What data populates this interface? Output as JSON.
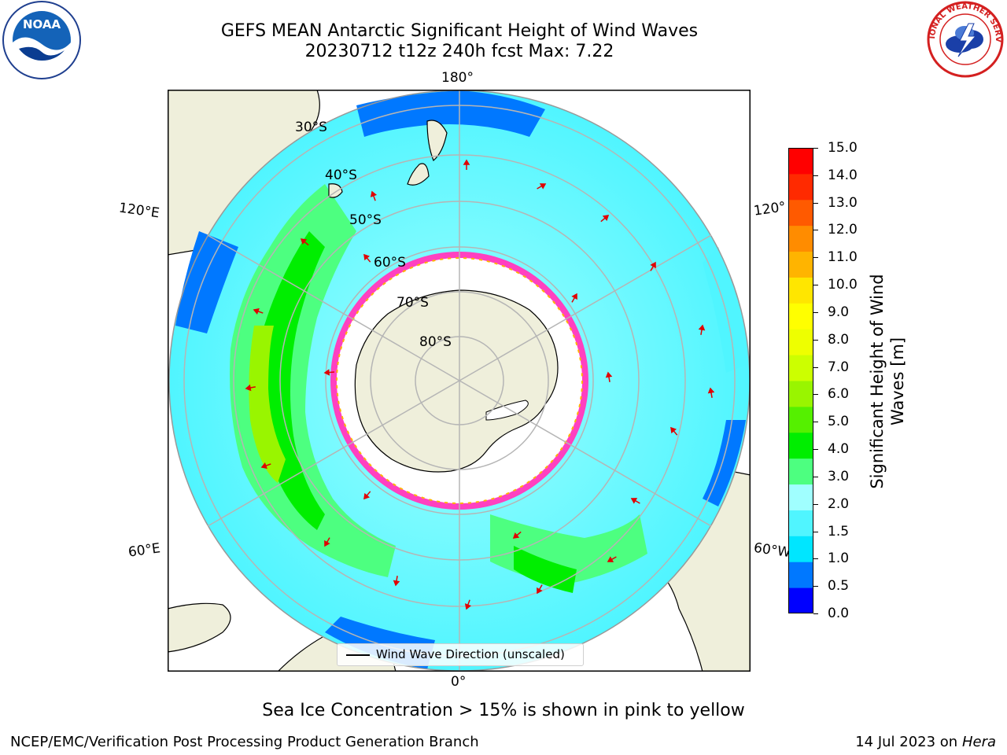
{
  "title_line1": "GEFS MEAN Antarctic Significant Height of Wind Waves",
  "title_line2": "20230712 t12z 240h fcst   Max: 7.22",
  "longitude_labels": {
    "top": "180°",
    "bottom": "0°",
    "upper_left": "120°E",
    "lower_left": "60°E",
    "upper_right": "120°",
    "lower_right": "60°W"
  },
  "latitude_labels": [
    "30°S",
    "40°S",
    "50°S",
    "60°S",
    "70°S",
    "80°S"
  ],
  "legend_label": "Wind Wave Direction (unscaled)",
  "colorbar": {
    "label": "Significant Height of Wind Waves [m]",
    "label_line1": "Significant Height of Wind",
    "label_line2": "Waves [m]",
    "ticks": [
      "15.0",
      "14.0",
      "13.0",
      "12.0",
      "11.0",
      "10.0",
      "9.0",
      "8.0",
      "7.0",
      "6.0",
      "5.0",
      "4.0",
      "3.0",
      "2.0",
      "1.5",
      "1.0",
      "0.5",
      "0.0"
    ],
    "colors": [
      "#0000ff",
      "#0078ff",
      "#00e6ff",
      "#50f5ff",
      "#a0ffff",
      "#4dff80",
      "#00ee00",
      "#55f000",
      "#99f500",
      "#ccff00",
      "#eeff00",
      "#ffff00",
      "#ffe600",
      "#ffb400",
      "#ff8c00",
      "#ff5a00",
      "#ff2a00",
      "#ff0000"
    ]
  },
  "sea_ice_note": "Sea Ice Concentration > 15% is shown in pink to yellow",
  "footer_left": "NCEP/EMC/Verification Post Processing Product Generation Branch",
  "footer_date": "14 Jul 2023 on ",
  "footer_machine": "Hera",
  "logos": {
    "left": "noaa-logo",
    "left_text": "NOAA",
    "right": "nws-logo",
    "right_text": "NATIONAL WEATHER SERVICE"
  }
}
